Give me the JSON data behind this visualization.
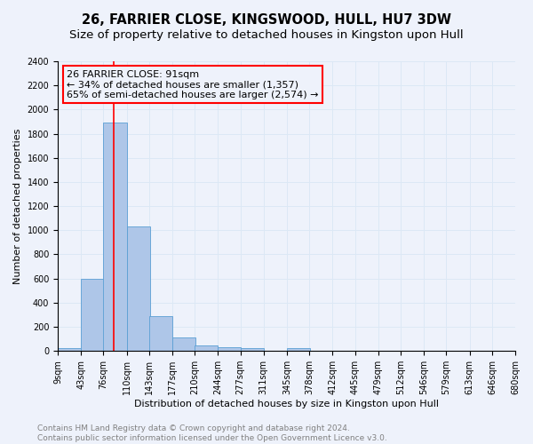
{
  "title": "26, FARRIER CLOSE, KINGSWOOD, HULL, HU7 3DW",
  "subtitle": "Size of property relative to detached houses in Kingston upon Hull",
  "xlabel": "Distribution of detached houses by size in Kingston upon Hull",
  "ylabel": "Number of detached properties",
  "bin_labels": [
    "9sqm",
    "43sqm",
    "76sqm",
    "110sqm",
    "143sqm",
    "177sqm",
    "210sqm",
    "244sqm",
    "277sqm",
    "311sqm",
    "345sqm",
    "378sqm",
    "412sqm",
    "445sqm",
    "479sqm",
    "512sqm",
    "546sqm",
    "579sqm",
    "613sqm",
    "646sqm",
    "680sqm"
  ],
  "bin_edges": [
    9,
    43,
    76,
    110,
    143,
    177,
    210,
    244,
    277,
    311,
    345,
    378,
    412,
    445,
    479,
    512,
    546,
    579,
    613,
    646,
    680
  ],
  "bar_heights": [
    22,
    600,
    1890,
    1030,
    290,
    112,
    47,
    33,
    22,
    0,
    22,
    0,
    0,
    0,
    0,
    0,
    0,
    0,
    0,
    0
  ],
  "bar_color": "#aec6e8",
  "bar_edge_color": "#5a9fd4",
  "grid_color": "#dce8f5",
  "background_color": "#eef2fb",
  "vline_x": 91,
  "vline_color": "red",
  "annotation_title": "26 FARRIER CLOSE: 91sqm",
  "annotation_line1": "← 34% of detached houses are smaller (1,357)",
  "annotation_line2": "65% of semi-detached houses are larger (2,574) →",
  "annotation_box_color": "red",
  "ylim": [
    0,
    2400
  ],
  "yticks": [
    0,
    200,
    400,
    600,
    800,
    1000,
    1200,
    1400,
    1600,
    1800,
    2000,
    2200,
    2400
  ],
  "footer_line1": "Contains HM Land Registry data © Crown copyright and database right 2024.",
  "footer_line2": "Contains public sector information licensed under the Open Government Licence v3.0.",
  "title_fontsize": 10.5,
  "subtitle_fontsize": 9.5,
  "axis_label_fontsize": 8,
  "tick_fontsize": 7,
  "annotation_fontsize": 8,
  "footer_fontsize": 6.5
}
